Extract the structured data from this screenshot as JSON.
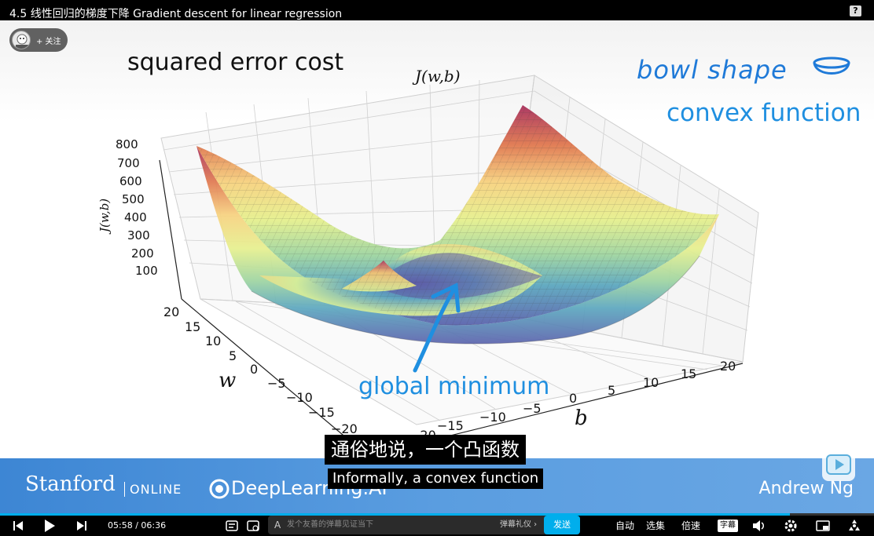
{
  "window": {
    "title": "4.5 线性回归的梯度下降 Gradient descent for linear regression",
    "help_icon": "?"
  },
  "uploader": {
    "follow_label": "+ 关注"
  },
  "slide": {
    "heading": "squared error cost",
    "note_bowl": "bowl shape",
    "note_convex": "convex function",
    "annotation": "global minimum"
  },
  "chart_data": {
    "type": "surface3d",
    "title": "J(w,b)",
    "z_label": "J(w,b)",
    "x_label": "b",
    "y_label": "w",
    "z_ticks": [
      "800",
      "700",
      "600",
      "500",
      "400",
      "300",
      "200",
      "100"
    ],
    "w_ticks": [
      "20",
      "15",
      "10",
      "5",
      "0",
      "−5",
      "−10",
      "−15",
      "−20"
    ],
    "b_ticks": [
      "−20",
      "−15",
      "−10",
      "−5",
      "0",
      "5",
      "10",
      "15",
      "20"
    ],
    "z_range": [
      0,
      800
    ],
    "w_range": [
      -20,
      20
    ],
    "b_range": [
      -20,
      20
    ],
    "colormap": "Spectral_r",
    "grid": true
  },
  "branding": {
    "stanford": "Stanford",
    "online": "ONLINE",
    "deeplearning": "DeepLearning.AI",
    "instructor": "Andrew Ng"
  },
  "subtitles": {
    "zh": "通俗地说，一个凸函数",
    "en": "Informally, a convex function"
  },
  "player": {
    "current_time": "05:58",
    "duration": "06:36",
    "time_display": "05:58 / 06:36",
    "progress": 0.904,
    "danmaku_placeholder": "发个友善的弹幕见证当下",
    "danmaku_etiquette": "弹幕礼仪 ›",
    "send_label": "发送",
    "auto_label": "自动",
    "episodes_label": "选集",
    "speed_label": "倍速",
    "subtitle_label": "字幕",
    "accent": "#00aeec"
  }
}
